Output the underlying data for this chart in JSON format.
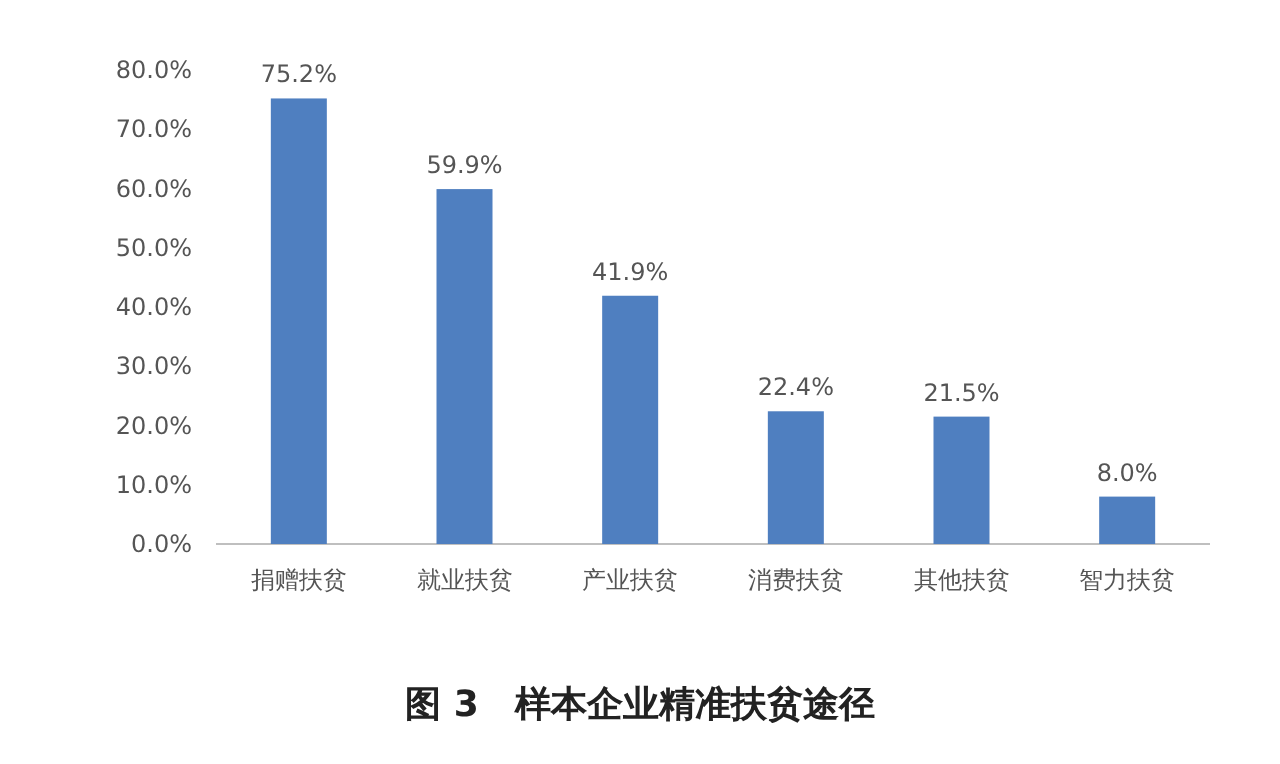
{
  "chart_data": {
    "type": "bar",
    "title": "图 3　样本企业精准扶贫途径",
    "categories": [
      "捐赠扶贫",
      "就业扶贫",
      "产业扶贫",
      "消费扶贫",
      "其他扶贫",
      "智力扶贫"
    ],
    "values": [
      75.2,
      59.9,
      41.9,
      22.4,
      21.5,
      8.0
    ],
    "value_labels": [
      "75.2%",
      "59.9%",
      "41.9%",
      "22.4%",
      "21.5%",
      "8.0%"
    ],
    "color": "#4f7fc0",
    "ylim": [
      0,
      80
    ],
    "yticks": [
      {
        "value": 0,
        "label": "0.0%"
      },
      {
        "value": 10,
        "label": "10.0%"
      },
      {
        "value": 20,
        "label": "20.0%"
      },
      {
        "value": 30,
        "label": "30.0%"
      },
      {
        "value": 40,
        "label": "40.0%"
      },
      {
        "value": 50,
        "label": "50.0%"
      },
      {
        "value": 60,
        "label": "60.0%"
      },
      {
        "value": 70,
        "label": "70.0%"
      },
      {
        "value": 80,
        "label": "80.0%"
      }
    ]
  }
}
